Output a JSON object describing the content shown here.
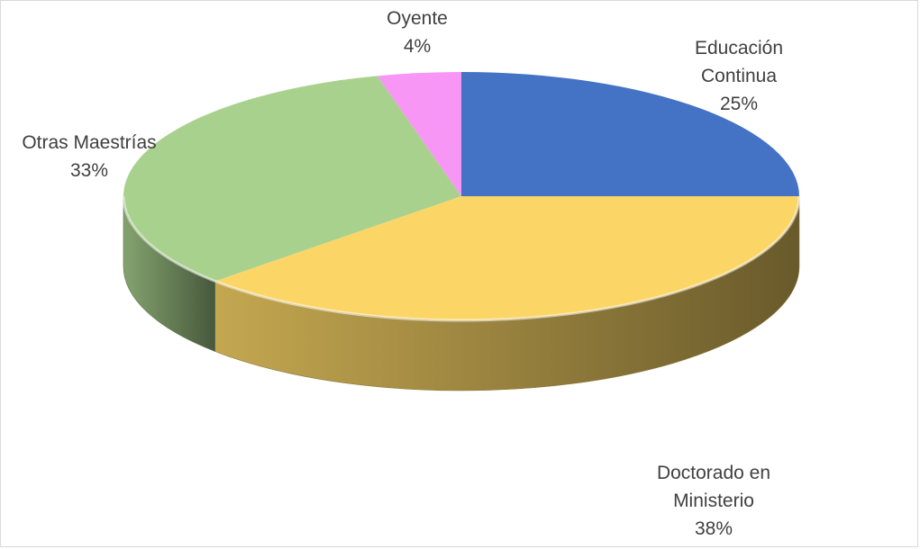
{
  "chart_data": {
    "type": "pie",
    "style": "3d-tilted",
    "slices": [
      {
        "name": "Educación Continua",
        "label_lines": [
          "Educación",
          "Continua"
        ],
        "value": 25,
        "value_label": "25%",
        "color": "#4472c4"
      },
      {
        "name": "Doctorado en Ministerio",
        "label_lines": [
          "Doctorado en",
          "Ministerio"
        ],
        "value": 38,
        "value_label": "38%",
        "color": "#fbd667"
      },
      {
        "name": "Otras Maestrías",
        "label_lines": [
          "Otras Maestrías"
        ],
        "value": 33,
        "value_label": "33%",
        "color": "#a9d18e"
      },
      {
        "name": "Oyente",
        "label_lines": [
          "Oyente"
        ],
        "value": 4,
        "value_label": "4%",
        "color": "#f796f5"
      }
    ],
    "legend": "none"
  }
}
